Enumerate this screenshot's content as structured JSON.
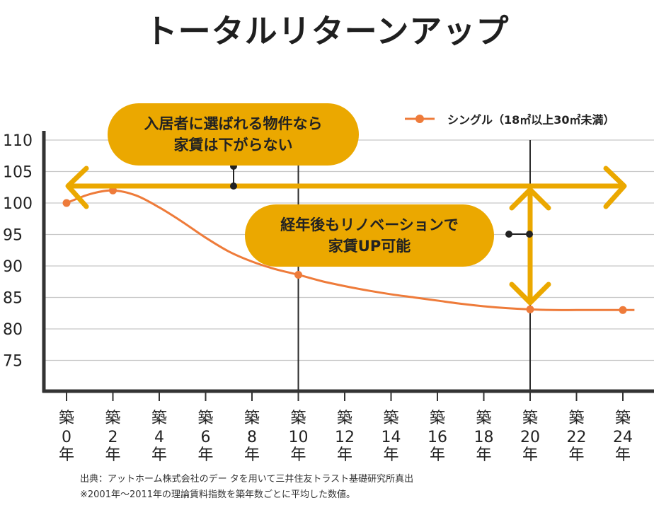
{
  "title": "トータルリターンアップ",
  "chart_data": {
    "type": "line",
    "x": [
      0,
      2,
      4,
      6,
      8,
      10,
      12,
      14,
      16,
      18,
      20,
      22,
      24
    ],
    "x_tick_labels": [
      {
        "top": "築",
        "num": "0",
        "bottom": "年"
      },
      {
        "top": "築",
        "num": "2",
        "bottom": "年"
      },
      {
        "top": "築",
        "num": "4",
        "bottom": "年"
      },
      {
        "top": "築",
        "num": "6",
        "bottom": "年"
      },
      {
        "top": "築",
        "num": "8",
        "bottom": "年"
      },
      {
        "top": "築",
        "num": "10",
        "bottom": "年"
      },
      {
        "top": "築",
        "num": "12",
        "bottom": "年"
      },
      {
        "top": "築",
        "num": "14",
        "bottom": "年"
      },
      {
        "top": "築",
        "num": "16",
        "bottom": "年"
      },
      {
        "top": "築",
        "num": "18",
        "bottom": "年"
      },
      {
        "top": "築",
        "num": "20",
        "bottom": "年"
      },
      {
        "top": "築",
        "num": "22",
        "bottom": "年"
      },
      {
        "top": "築",
        "num": "24",
        "bottom": "年"
      }
    ],
    "y_ticks": [
      110,
      105,
      100,
      95,
      90,
      85,
      80,
      75
    ],
    "ylim": [
      70,
      110
    ],
    "xlim": [
      0,
      24
    ],
    "grid": true,
    "legend_position": "top-right",
    "series": [
      {
        "name": "シングル（18㎡以上30㎡未満）",
        "color": "#ee7b3a",
        "curve": [
          [
            0,
            100
          ],
          [
            1,
            101.4
          ],
          [
            2,
            102
          ],
          [
            3,
            101.2
          ],
          [
            4,
            99.3
          ],
          [
            5,
            97
          ],
          [
            6,
            94.5
          ],
          [
            7,
            92.3
          ],
          [
            8,
            90.7
          ],
          [
            9,
            89.5
          ],
          [
            10,
            88.6
          ],
          [
            11,
            87.6
          ],
          [
            12,
            86.8
          ],
          [
            13,
            86.1
          ],
          [
            14,
            85.5
          ],
          [
            15,
            85
          ],
          [
            16,
            84.5
          ],
          [
            17,
            84
          ],
          [
            18,
            83.6
          ],
          [
            19,
            83.3
          ],
          [
            20,
            83.1
          ],
          [
            21,
            83
          ],
          [
            22,
            83
          ],
          [
            23,
            83
          ],
          [
            24,
            83
          ],
          [
            24.5,
            83
          ]
        ],
        "markers": [
          [
            0,
            100
          ],
          [
            2,
            102
          ],
          [
            10,
            88.6
          ],
          [
            20,
            83.1
          ],
          [
            24,
            83
          ]
        ]
      }
    ],
    "annotations": {
      "bubble1_lines": [
        "入居者に選ばれる物件なら",
        "家賃は下がらない"
      ],
      "bubble2_lines": [
        "経年後もリノベーションで",
        "家賃UP可能"
      ],
      "arrow_color": "#eba800",
      "horizontal_arrow_y": 102.7,
      "vertical_lines_x": [
        10,
        20
      ],
      "vertical_arrow_x": 20
    }
  },
  "source_line1": "出典：アットホーム株式会社のデー タを用いて三井住友トラスト基礎研究所真出",
  "source_line2": "※2001年〜2011年の理論賃料指数を築年数ごとに平均した数値。"
}
